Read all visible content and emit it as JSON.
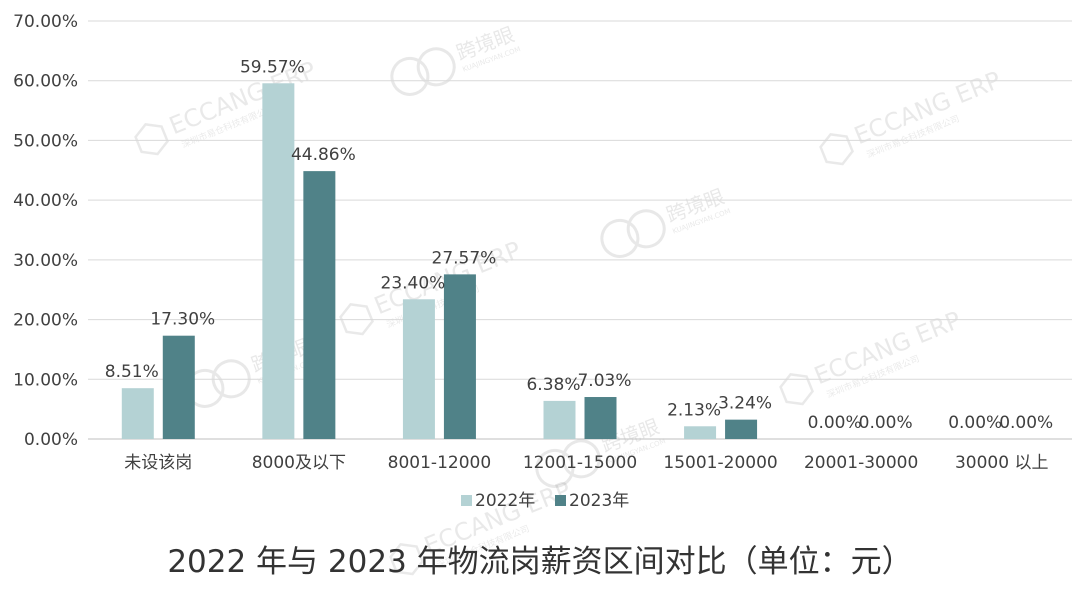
{
  "chart_data": {
    "type": "bar",
    "title": "2022 年与 2023 年物流岗薪资区间对比（单位：元）",
    "categories": [
      "未设该岗",
      "8000及以下",
      "8001-12000",
      "12001-15000",
      "15001-20000",
      "20001-30000",
      "30000 以上"
    ],
    "series": [
      {
        "name": "2022年",
        "values": [
          8.51,
          59.57,
          23.4,
          6.38,
          2.13,
          0.0,
          0.0
        ],
        "labels": [
          "8.51%",
          "59.57%",
          "23.40%",
          "6.38%",
          "2.13%",
          "0.00%",
          "0.00%"
        ],
        "color": "#b4d2d4"
      },
      {
        "name": "2023年",
        "values": [
          17.3,
          44.86,
          27.57,
          7.03,
          3.24,
          0.0,
          0.0
        ],
        "labels": [
          "17.30%",
          "44.86%",
          "27.57%",
          "7.03%",
          "3.24%",
          "0.00%",
          "0.00%"
        ],
        "color": "#508288"
      }
    ],
    "y_ticks": [
      "0.00%",
      "10.00%",
      "20.00%",
      "30.00%",
      "40.00%",
      "50.00%",
      "60.00%",
      "70.00%"
    ],
    "ylim": [
      0,
      70
    ],
    "grid": true,
    "legend_position": "bottom",
    "xlabel": "",
    "ylabel": ""
  },
  "watermarks": {
    "brand_cn": "跨境眼",
    "brand_en": "KUAJINGYAN.COM",
    "erp_name": "ECCANG ERP",
    "erp_company": "深圳市易仓科技有限公司"
  }
}
